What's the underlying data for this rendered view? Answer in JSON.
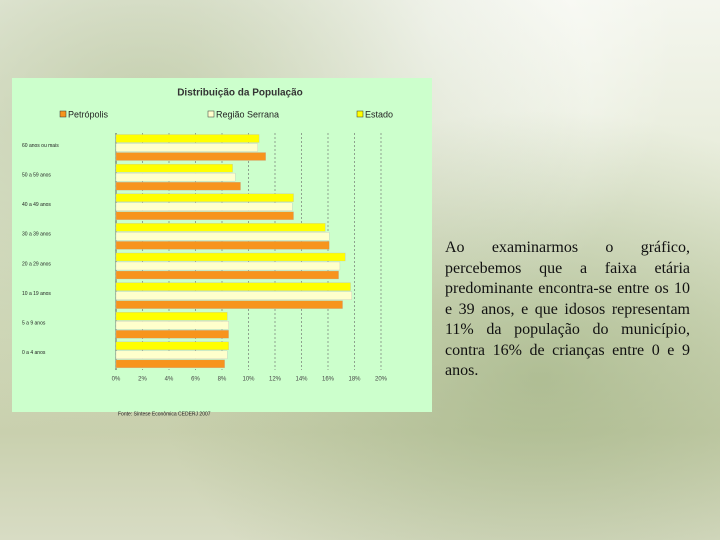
{
  "chart_data": {
    "type": "hbar",
    "title": "Distribuição da População",
    "categories": [
      "60 anos ou mais",
      "50 a 59 anos",
      "40 a 49 anos",
      "30 a 39 anos",
      "20 a 29 anos",
      "10 a 19 anos",
      "5 a 9 anos",
      "0 a 4 anos"
    ],
    "series": [
      {
        "name": "Estado",
        "color": "#ffff00",
        "values": [
          10.8,
          8.8,
          13.4,
          15.8,
          17.3,
          17.7,
          8.4,
          8.5
        ]
      },
      {
        "name": "Região Serrana",
        "color": "#ffffcc",
        "values": [
          10.7,
          9.0,
          13.3,
          16.1,
          16.9,
          17.8,
          8.5,
          8.4
        ]
      },
      {
        "name": "Petrópolis",
        "color": "#f7941d",
        "values": [
          11.3,
          9.4,
          13.4,
          16.1,
          16.8,
          17.1,
          8.5,
          8.2
        ]
      }
    ],
    "legend_order": [
      2,
      1,
      0
    ],
    "xlim": [
      0,
      20
    ],
    "xticks": [
      {
        "value": 0,
        "label": "0%"
      },
      {
        "value": 2,
        "label": "2%"
      },
      {
        "value": 4,
        "label": "4%"
      },
      {
        "value": 6,
        "label": "6%"
      },
      {
        "value": 8,
        "label": "8%"
      },
      {
        "value": 10,
        "label": "10%"
      },
      {
        "value": 12,
        "label": "12%"
      },
      {
        "value": 14,
        "label": "14%"
      },
      {
        "value": 16,
        "label": "16%"
      },
      {
        "value": 18,
        "label": "18%"
      },
      {
        "value": 20,
        "label": "20%"
      }
    ],
    "grid": true,
    "source": "Fonte: Síntese Econômica CEDERJ 2007"
  },
  "slide_text": "Ao examinarmos o gráfico, percebemos que a faixa etária predominante encontra-se entre os 10 e 39 anos, e que idosos representam 11% da população do município, contra 16% de crianças entre 0 e 9 anos."
}
